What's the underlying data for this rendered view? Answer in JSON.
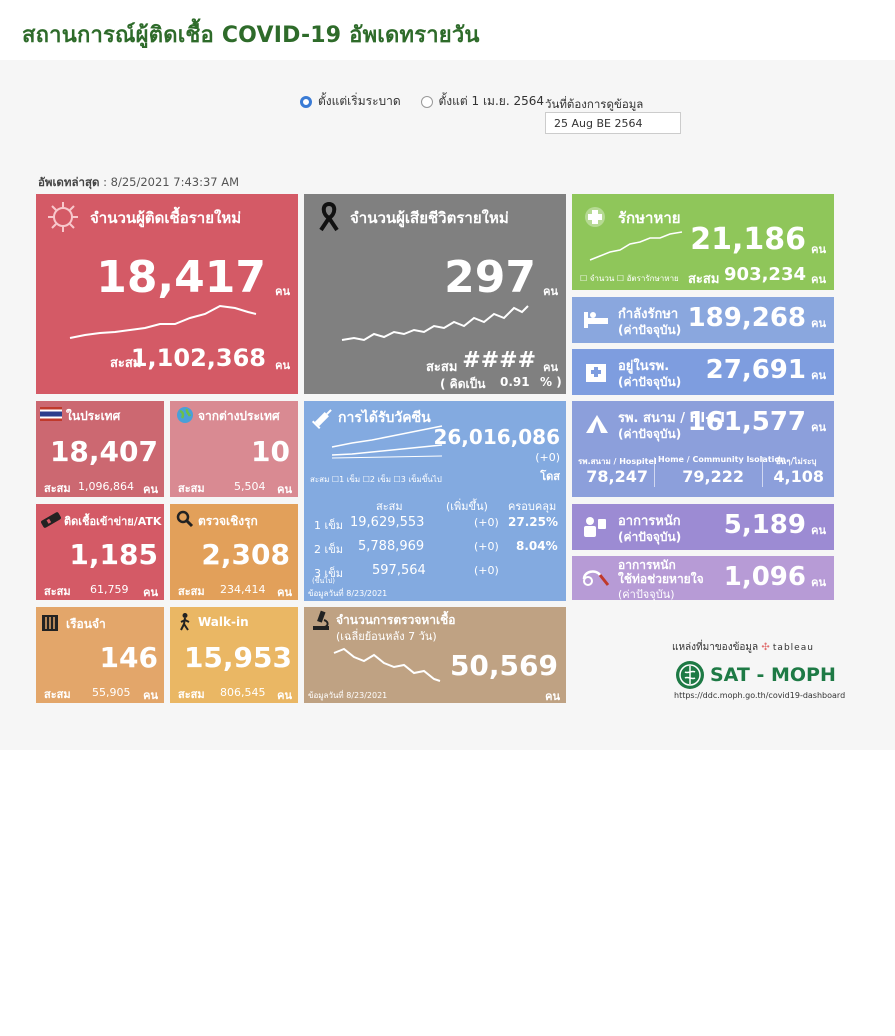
{
  "title": "สถานการณ์ผู้ติดเชื้อ COVID-19 อัพเดทรายวัน",
  "filters": {
    "option1": "ตั้งแต่เริ่มระบาด",
    "option2": "ตั้งแต่ 1 เม.ย. 2564",
    "date_label": "วันที่ต้องการดูข้อมูล",
    "date_value": "25 Aug BE 2564"
  },
  "updated": {
    "label": "อัพเดทล่าสุด",
    "value": ": 8/25/2021 7:43:37 AM"
  },
  "unit": "คน",
  "cum_label": "สะสม",
  "new_cases": {
    "label": "จำนวนผู้ติดเชื้อรายใหม่",
    "value": "18,417",
    "cum": "1,102,368"
  },
  "new_deaths": {
    "label": "จำนวนผู้เสียชีวิตรายใหม่",
    "value": "297",
    "cum": "####",
    "pct_label": "( คิดเป็น",
    "pct": "0.91",
    "pct_unit": "% )"
  },
  "recovered": {
    "label": "รักษาหาย",
    "value": "21,186",
    "cum": "903,234",
    "legend1": "จำนวน",
    "legend2": "อัตรารักษาหาย"
  },
  "treating": {
    "label1": "กำลังรักษา",
    "label2": "(ค่าปัจจุบัน)",
    "value": "189,268"
  },
  "hospital": {
    "label1": "อยู่ในรพ.",
    "label2": "(ค่าปัจจุบัน)",
    "value": "27,691"
  },
  "field": {
    "label1": "รพ. สนาม / HI-CI",
    "label2": "(ค่าปัจจุบัน)",
    "value": "161,577",
    "cols": [
      {
        "name": "รพ.สนาม / Hospitel",
        "value": "78,247"
      },
      {
        "name": "Home / Community Isolation",
        "value": "79,222"
      },
      {
        "name": "อื่นๆ/ไม่ระบุ",
        "value": "4,108"
      }
    ]
  },
  "domestic": {
    "label": "ในประเทศ",
    "value": "18,407",
    "cum": "1,096,864"
  },
  "abroad": {
    "label": "จากต่างประเทศ",
    "value": "10",
    "cum": "5,504"
  },
  "prison": {
    "label": "ติดเชื้อเข้าข่าย/ATK",
    "value": "1,185",
    "cum": "61,759"
  },
  "active_search": {
    "label": "ตรวจเชิงรุก",
    "value": "2,308",
    "cum": "234,414"
  },
  "jail": {
    "label": "เรือนจำ",
    "value": "146",
    "cum": "55,905"
  },
  "walkin": {
    "label": "Walk-in",
    "value": "15,953",
    "cum": "806,545"
  },
  "vaccine": {
    "label": "การได้รับวัคซีน",
    "value": "26,016,086",
    "delta": "(+0)",
    "unit": "โดส",
    "legend": [
      "1 เข็ม",
      "2 เข็ม",
      "3 เข็มขึ้นไป"
    ],
    "head_cum": "สะสม",
    "head_add": "(เพิ่มขึ้น)",
    "head_cov": "ครอบคลุม",
    "rows": [
      {
        "dose": "1 เข็ม",
        "cum": "19,629,553",
        "add": "(+0)",
        "cov": "27.25%"
      },
      {
        "dose": "2 เข็ม",
        "cum": "5,788,969",
        "add": "(+0)",
        "cov": "8.04%"
      },
      {
        "dose": "3 เข็ม",
        "cum": "597,564",
        "add": "(+0)",
        "cov": ""
      }
    ],
    "dose3_note": "(ขึ้นไป)",
    "data_date": "ข้อมูลวันที่ 8/23/2021"
  },
  "severe": {
    "label1": "อาการหนัก",
    "label2": "(ค่าปัจจุบัน)",
    "value": "5,189"
  },
  "ventilator": {
    "label1": "อาการหนัก",
    "label2": "ใช้ท่อช่วยหายใจ",
    "label3": "(ค่าปัจจุบัน)",
    "value": "1,096"
  },
  "tests": {
    "label1": "จำนวนการตรวจหาเชื้อ",
    "label2": "(เฉลี่ยย้อนหลัง 7 วัน)",
    "value": "50,569",
    "data_date": "ข้อมูลวันที่ 8/23/2021"
  },
  "source": {
    "label": "แหล่งที่มาของข้อมูล",
    "tableau": "tableau",
    "brand": "SAT - MOPH",
    "url": "https://ddc.moph.go.th/covid19-dashboard"
  }
}
